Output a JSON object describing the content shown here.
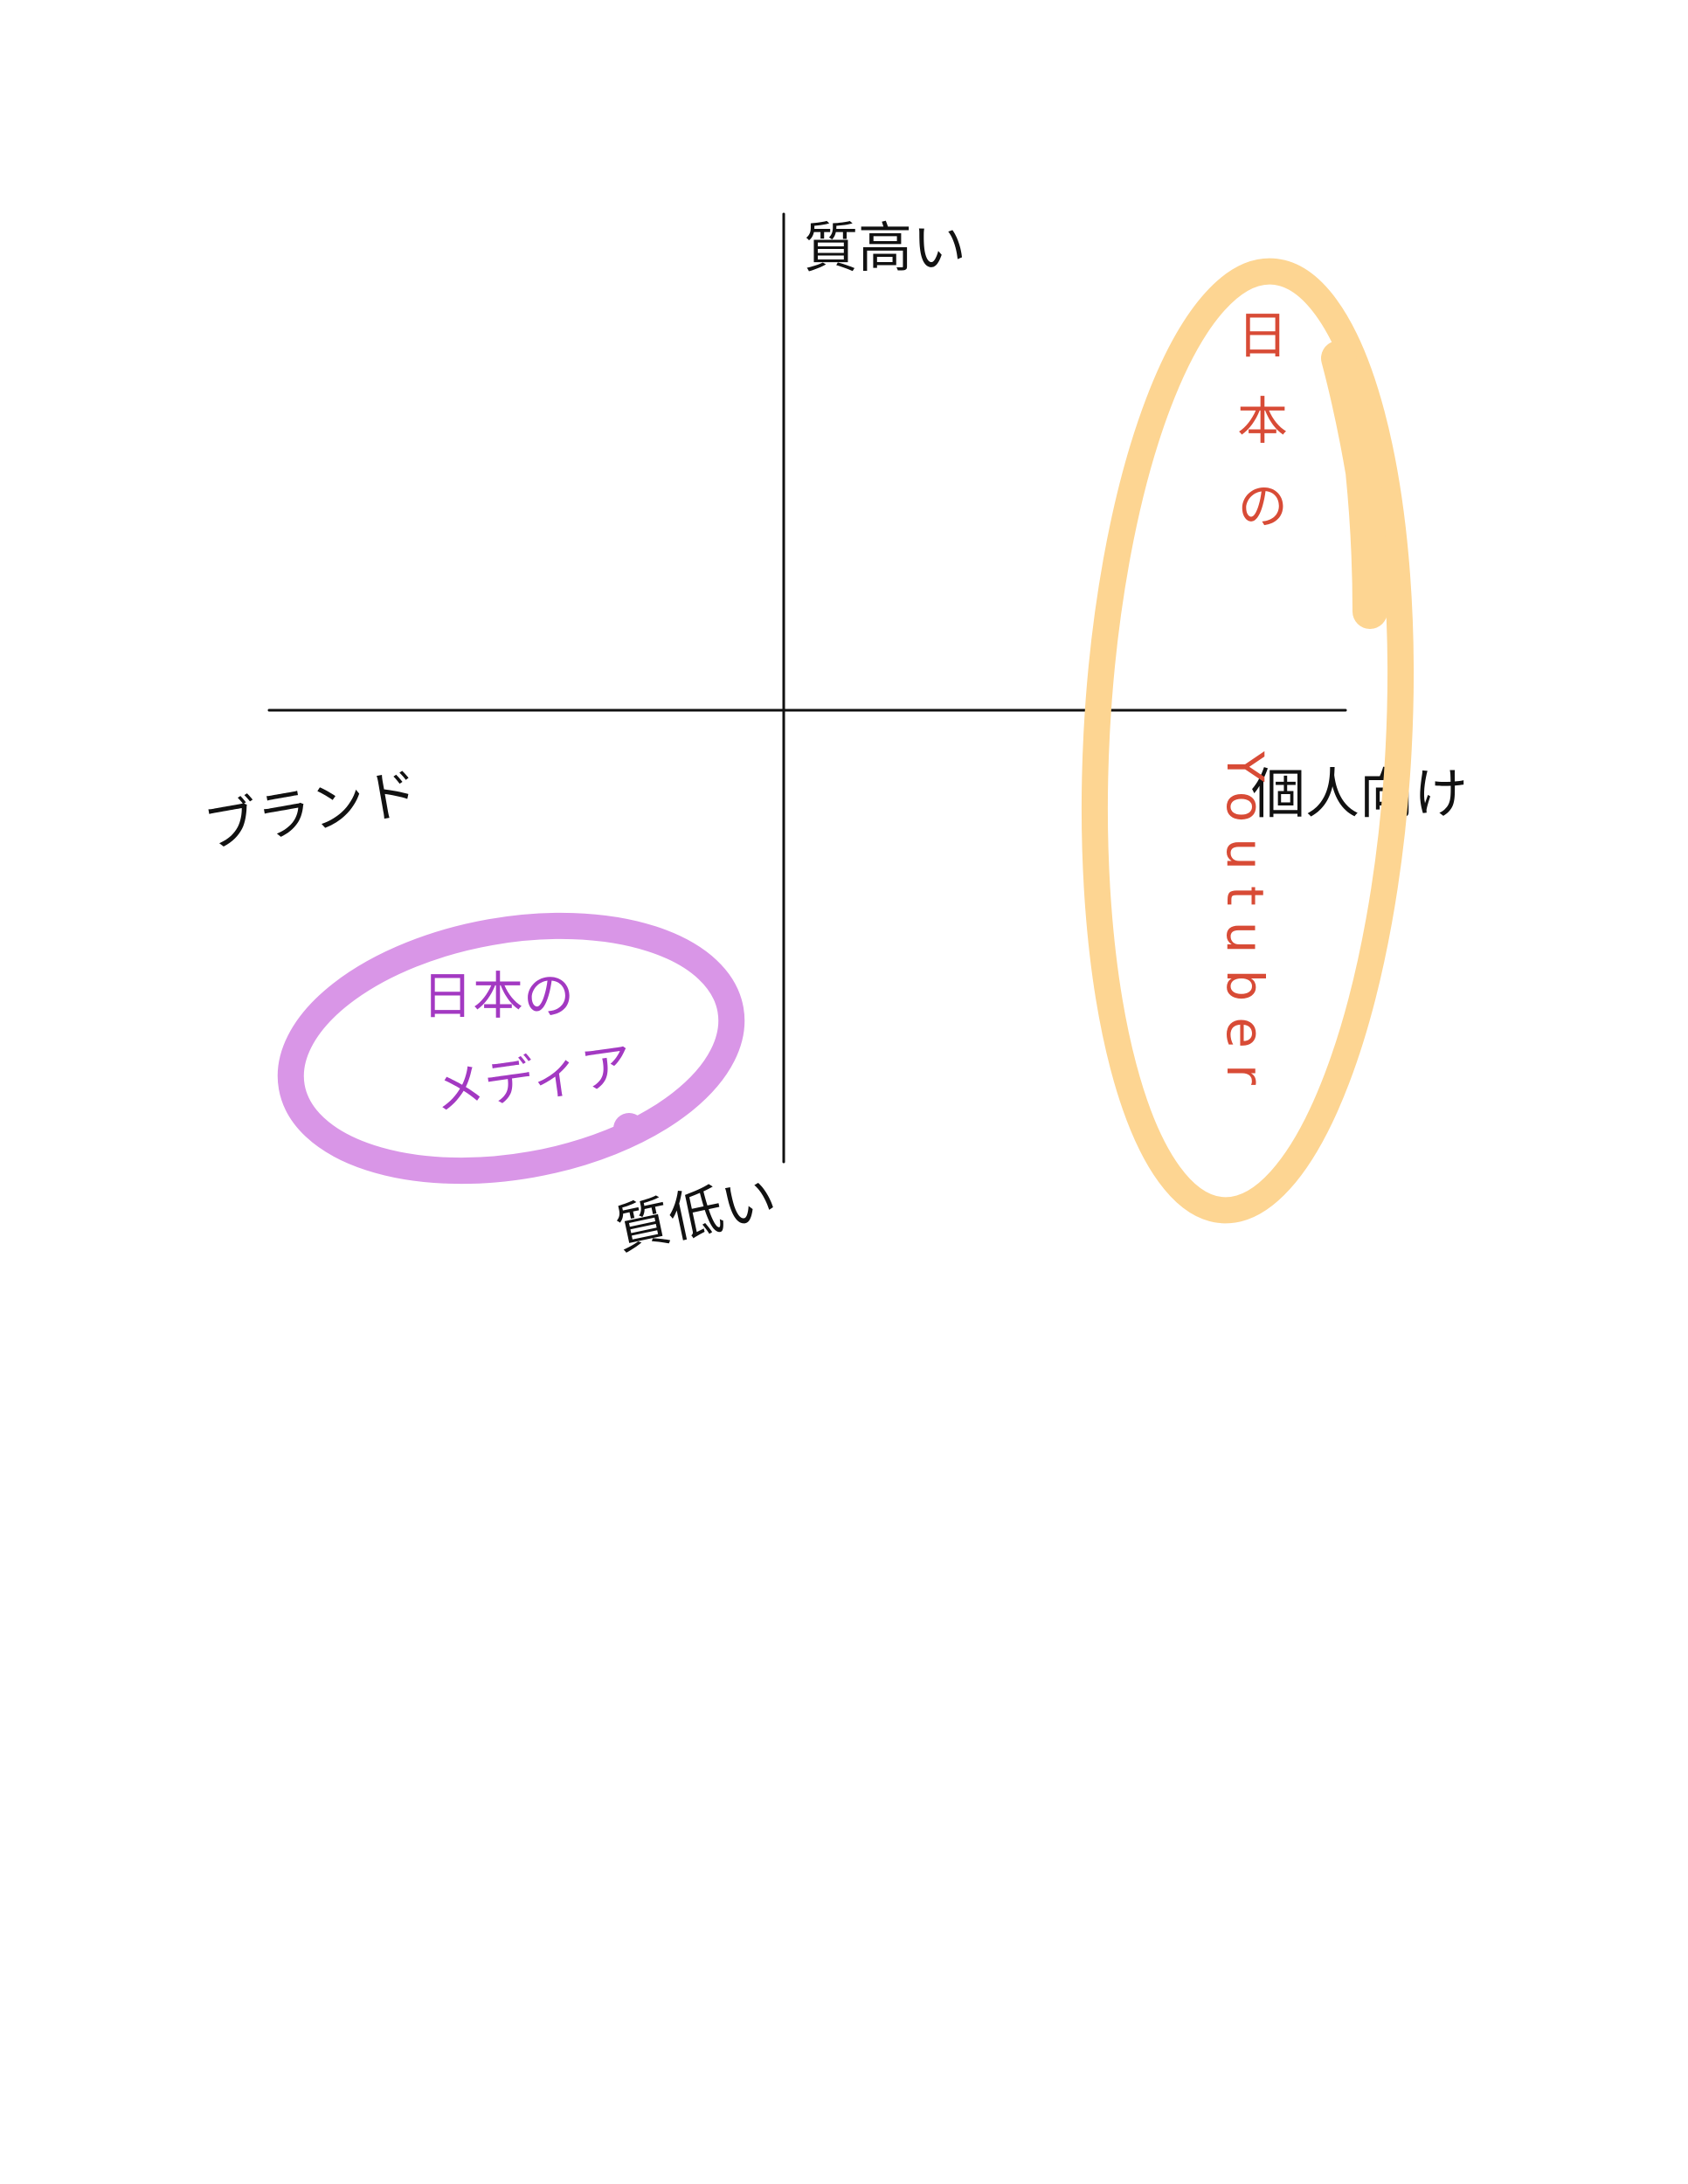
{
  "colors": {
    "background": "#ffffff",
    "axis": "#111111",
    "label": "#111111",
    "orange_ring": "#fdd592",
    "red_text": "#d84b36",
    "purple_ring": "#d996e7",
    "purple_text": "#a339c2"
  },
  "labels": {
    "top": "質高い",
    "bottom": "質低い",
    "left": "ブランド",
    "right": "個人向け"
  },
  "groups": {
    "orange": {
      "line1": "日本の",
      "line2": "Youtuber"
    },
    "purple": {
      "line1": "日本の",
      "line2": "メディア"
    }
  }
}
